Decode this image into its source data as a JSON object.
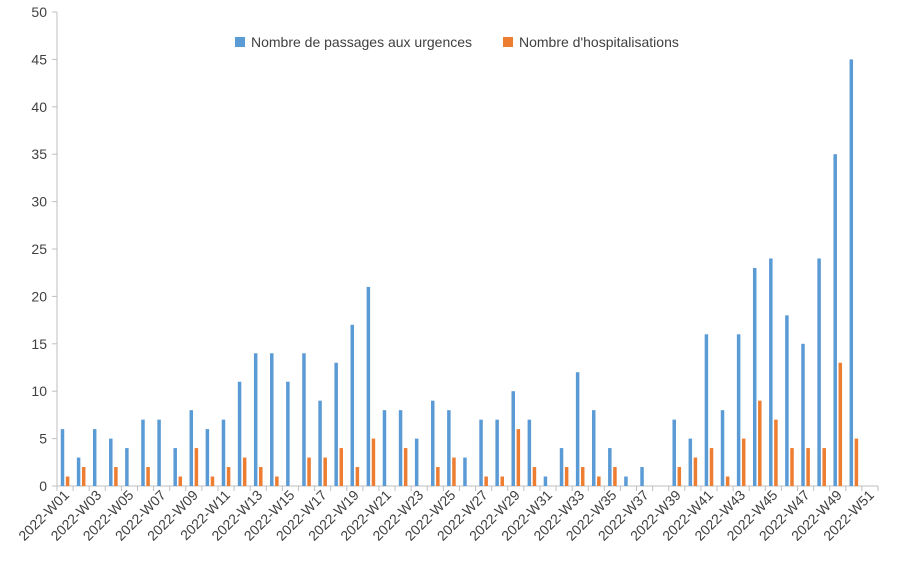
{
  "chart_data": {
    "type": "bar",
    "title": "",
    "xlabel": "",
    "ylabel": "",
    "ylim": [
      0,
      50
    ],
    "y_ticks": [
      0,
      5,
      10,
      15,
      20,
      25,
      30,
      35,
      40,
      45,
      50
    ],
    "grid": false,
    "legend_position": "top-center",
    "categories": [
      "2022-W01",
      "2022-W02",
      "2022-W03",
      "2022-W04",
      "2022-W05",
      "2022-W06",
      "2022-W07",
      "2022-W08",
      "2022-W09",
      "2022-W10",
      "2022-W11",
      "2022-W12",
      "2022-W13",
      "2022-W14",
      "2022-W15",
      "2022-W16",
      "2022-W17",
      "2022-W18",
      "2022-W19",
      "2022-W20",
      "2022-W21",
      "2022-W22",
      "2022-W23",
      "2022-W24",
      "2022-W25",
      "2022-W26",
      "2022-W27",
      "2022-W28",
      "2022-W29",
      "2022-W30",
      "2022-W31",
      "2022-W32",
      "2022-W33",
      "2022-W34",
      "2022-W35",
      "2022-W36",
      "2022-W37",
      "2022-W38",
      "2022-W39",
      "2022-W40",
      "2022-W41",
      "2022-W42",
      "2022-W43",
      "2022-W44",
      "2022-W45",
      "2022-W46",
      "2022-W47",
      "2022-W48",
      "2022-W49",
      "2022-W50",
      "2022-W51"
    ],
    "x_tick_labels_shown": [
      "2022-W01",
      "2022-W03",
      "2022-W05",
      "2022-W07",
      "2022-W09",
      "2022-W11",
      "2022-W13",
      "2022-W15",
      "2022-W17",
      "2022-W19",
      "2022-W21",
      "2022-W23",
      "2022-W25",
      "2022-W27",
      "2022-W29",
      "2022-W31",
      "2022-W33",
      "2022-W35",
      "2022-W37",
      "2022-W39",
      "2022-W41",
      "2022-W43",
      "2022-W45",
      "2022-W47",
      "2022-W49",
      "2022-W51"
    ],
    "series": [
      {
        "name": "Nombre de passages aux urgences",
        "color": "#5B9BD5",
        "values": [
          6,
          3,
          6,
          5,
          4,
          7,
          7,
          4,
          8,
          6,
          7,
          11,
          14,
          14,
          11,
          14,
          9,
          13,
          17,
          21,
          8,
          8,
          5,
          9,
          8,
          3,
          7,
          7,
          10,
          7,
          1,
          4,
          12,
          8,
          4,
          1,
          2,
          0,
          7,
          5,
          16,
          8,
          16,
          23,
          24,
          18,
          15,
          24,
          35,
          45,
          0
        ]
      },
      {
        "name": "Nombre d'hospitalisations",
        "color": "#ED7D31",
        "values": [
          1,
          2,
          0,
          2,
          0,
          2,
          0,
          1,
          4,
          1,
          2,
          3,
          2,
          1,
          0,
          3,
          3,
          4,
          2,
          5,
          0,
          4,
          0,
          2,
          3,
          0,
          1,
          1,
          6,
          2,
          0,
          2,
          2,
          1,
          2,
          0,
          0,
          0,
          2,
          3,
          4,
          1,
          5,
          9,
          7,
          4,
          4,
          4,
          13,
          5,
          0
        ]
      }
    ]
  }
}
